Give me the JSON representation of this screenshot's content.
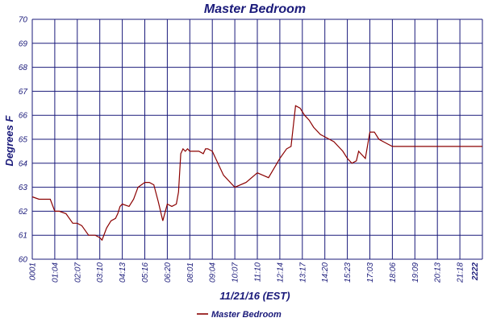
{
  "chart_data": {
    "type": "line",
    "title": "Master Bedroom",
    "xlabel": "11/21/16 (EST)",
    "ylabel": "Degrees F",
    "ylim": [
      60,
      70
    ],
    "yticks": [
      "60",
      "61",
      "62",
      "63",
      "64",
      "65",
      "66",
      "67",
      "68",
      "69",
      "70"
    ],
    "xticks": [
      "0001",
      "01:04",
      "02:07",
      "03:10",
      "04:13",
      "05:16",
      "06:20",
      "08:01",
      "09:04",
      "10:07",
      "11:10",
      "12:14",
      "13:17",
      "14:20",
      "15:23",
      "17:03",
      "18:06",
      "19:09",
      "20:13",
      "21:18",
      "2222"
    ],
    "grid": true,
    "legend": "bottom-center",
    "colors": {
      "line": "#8b0000",
      "grid": "#1a1a7a",
      "text": "#1a1a7a"
    },
    "series": [
      {
        "name": "Master Bedroom",
        "x": [
          0,
          0.3,
          0.6,
          0.8,
          1.0,
          1.2,
          1.5,
          1.8,
          2.0,
          2.2,
          2.5,
          2.8,
          3.0,
          3.1,
          3.3,
          3.5,
          3.7,
          3.8,
          3.9,
          4.0,
          4.3,
          4.5,
          4.7,
          5.0,
          5.2,
          5.4,
          5.6,
          5.8,
          6.0,
          6.2,
          6.4,
          6.5,
          6.6,
          6.7,
          6.8,
          6.9,
          7.0,
          7.2,
          7.4,
          7.6,
          7.7,
          7.8,
          8.0,
          8.5,
          9.0,
          9.5,
          10.0,
          10.5,
          11.0,
          11.3,
          11.5,
          11.7,
          11.9,
          12.1,
          12.3,
          12.5,
          12.8,
          13.0,
          13.2,
          13.4,
          13.6,
          13.8,
          14.0,
          14.2,
          14.4,
          14.5,
          14.6,
          14.7,
          14.8,
          15.0,
          15.2,
          15.4,
          15.6,
          15.8,
          16.0,
          16.5,
          17.0,
          17.3,
          17.5,
          17.7,
          18.0,
          18.5,
          18.8,
          19.0,
          19.1,
          19.2,
          19.4,
          19.6,
          19.8,
          20.0
        ],
        "values": [
          62.6,
          62.5,
          62.5,
          62.5,
          62.0,
          62.0,
          61.9,
          61.5,
          61.5,
          61.4,
          61.0,
          61.0,
          60.9,
          60.8,
          61.3,
          61.6,
          61.7,
          61.9,
          62.2,
          62.3,
          62.2,
          62.5,
          63.0,
          63.2,
          63.2,
          63.1,
          62.4,
          61.6,
          62.3,
          62.2,
          62.3,
          62.8,
          64.4,
          64.6,
          64.5,
          64.6,
          64.5,
          64.5,
          64.5,
          64.4,
          64.6,
          64.6,
          64.5,
          63.5,
          63.0,
          63.2,
          63.6,
          63.4,
          64.2,
          64.6,
          64.7,
          66.4,
          66.3,
          66.0,
          65.8,
          65.5,
          65.2,
          65.1,
          65.0,
          64.9,
          64.7,
          64.5,
          64.2,
          64.0,
          64.1,
          64.5,
          64.4,
          64.3,
          64.2,
          65.3,
          65.3,
          65.0,
          64.9,
          64.8,
          64.7,
          64.7,
          64.7,
          64.7,
          64.7,
          64.7,
          64.7,
          64.7,
          64.7,
          64.7,
          64.7,
          64.7,
          64.7,
          64.7,
          64.7,
          64.7
        ]
      }
    ]
  }
}
